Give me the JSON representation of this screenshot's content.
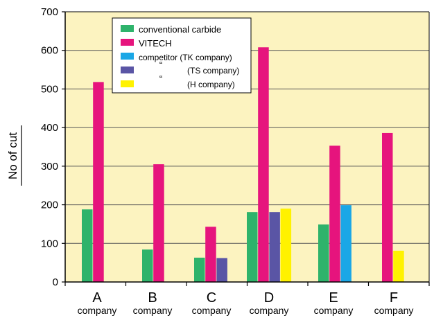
{
  "chart_data": {
    "type": "bar",
    "categories": [
      "A",
      "B",
      "C",
      "D",
      "E",
      "F"
    ],
    "category_sublabel": "company",
    "ylabel": "No of cut",
    "ylim": [
      0,
      700
    ],
    "yticks": [
      0,
      100,
      200,
      300,
      400,
      500,
      600,
      700
    ],
    "plot_background": "#FCF3C0",
    "grid": true,
    "legend_position": "top-left",
    "series": [
      {
        "name": "conventional carbide",
        "color": "#2EB36B",
        "values": [
          188,
          84,
          63,
          181,
          149,
          null
        ]
      },
      {
        "name": "VITECH",
        "color": "#E6147D",
        "values": [
          518,
          305,
          143,
          608,
          353,
          386
        ]
      },
      {
        "name": "competitor (TK company)",
        "color": "#1AA7E6",
        "values": [
          null,
          null,
          null,
          null,
          199,
          null
        ]
      },
      {
        "name": "(TS company)",
        "legend_prefix": "“",
        "color": "#5A55A5",
        "values": [
          null,
          null,
          62,
          181,
          null,
          null
        ]
      },
      {
        "name": "(H company)",
        "legend_prefix": "“",
        "color": "#FFF200",
        "values": [
          null,
          null,
          null,
          190,
          null,
          81
        ]
      }
    ]
  }
}
